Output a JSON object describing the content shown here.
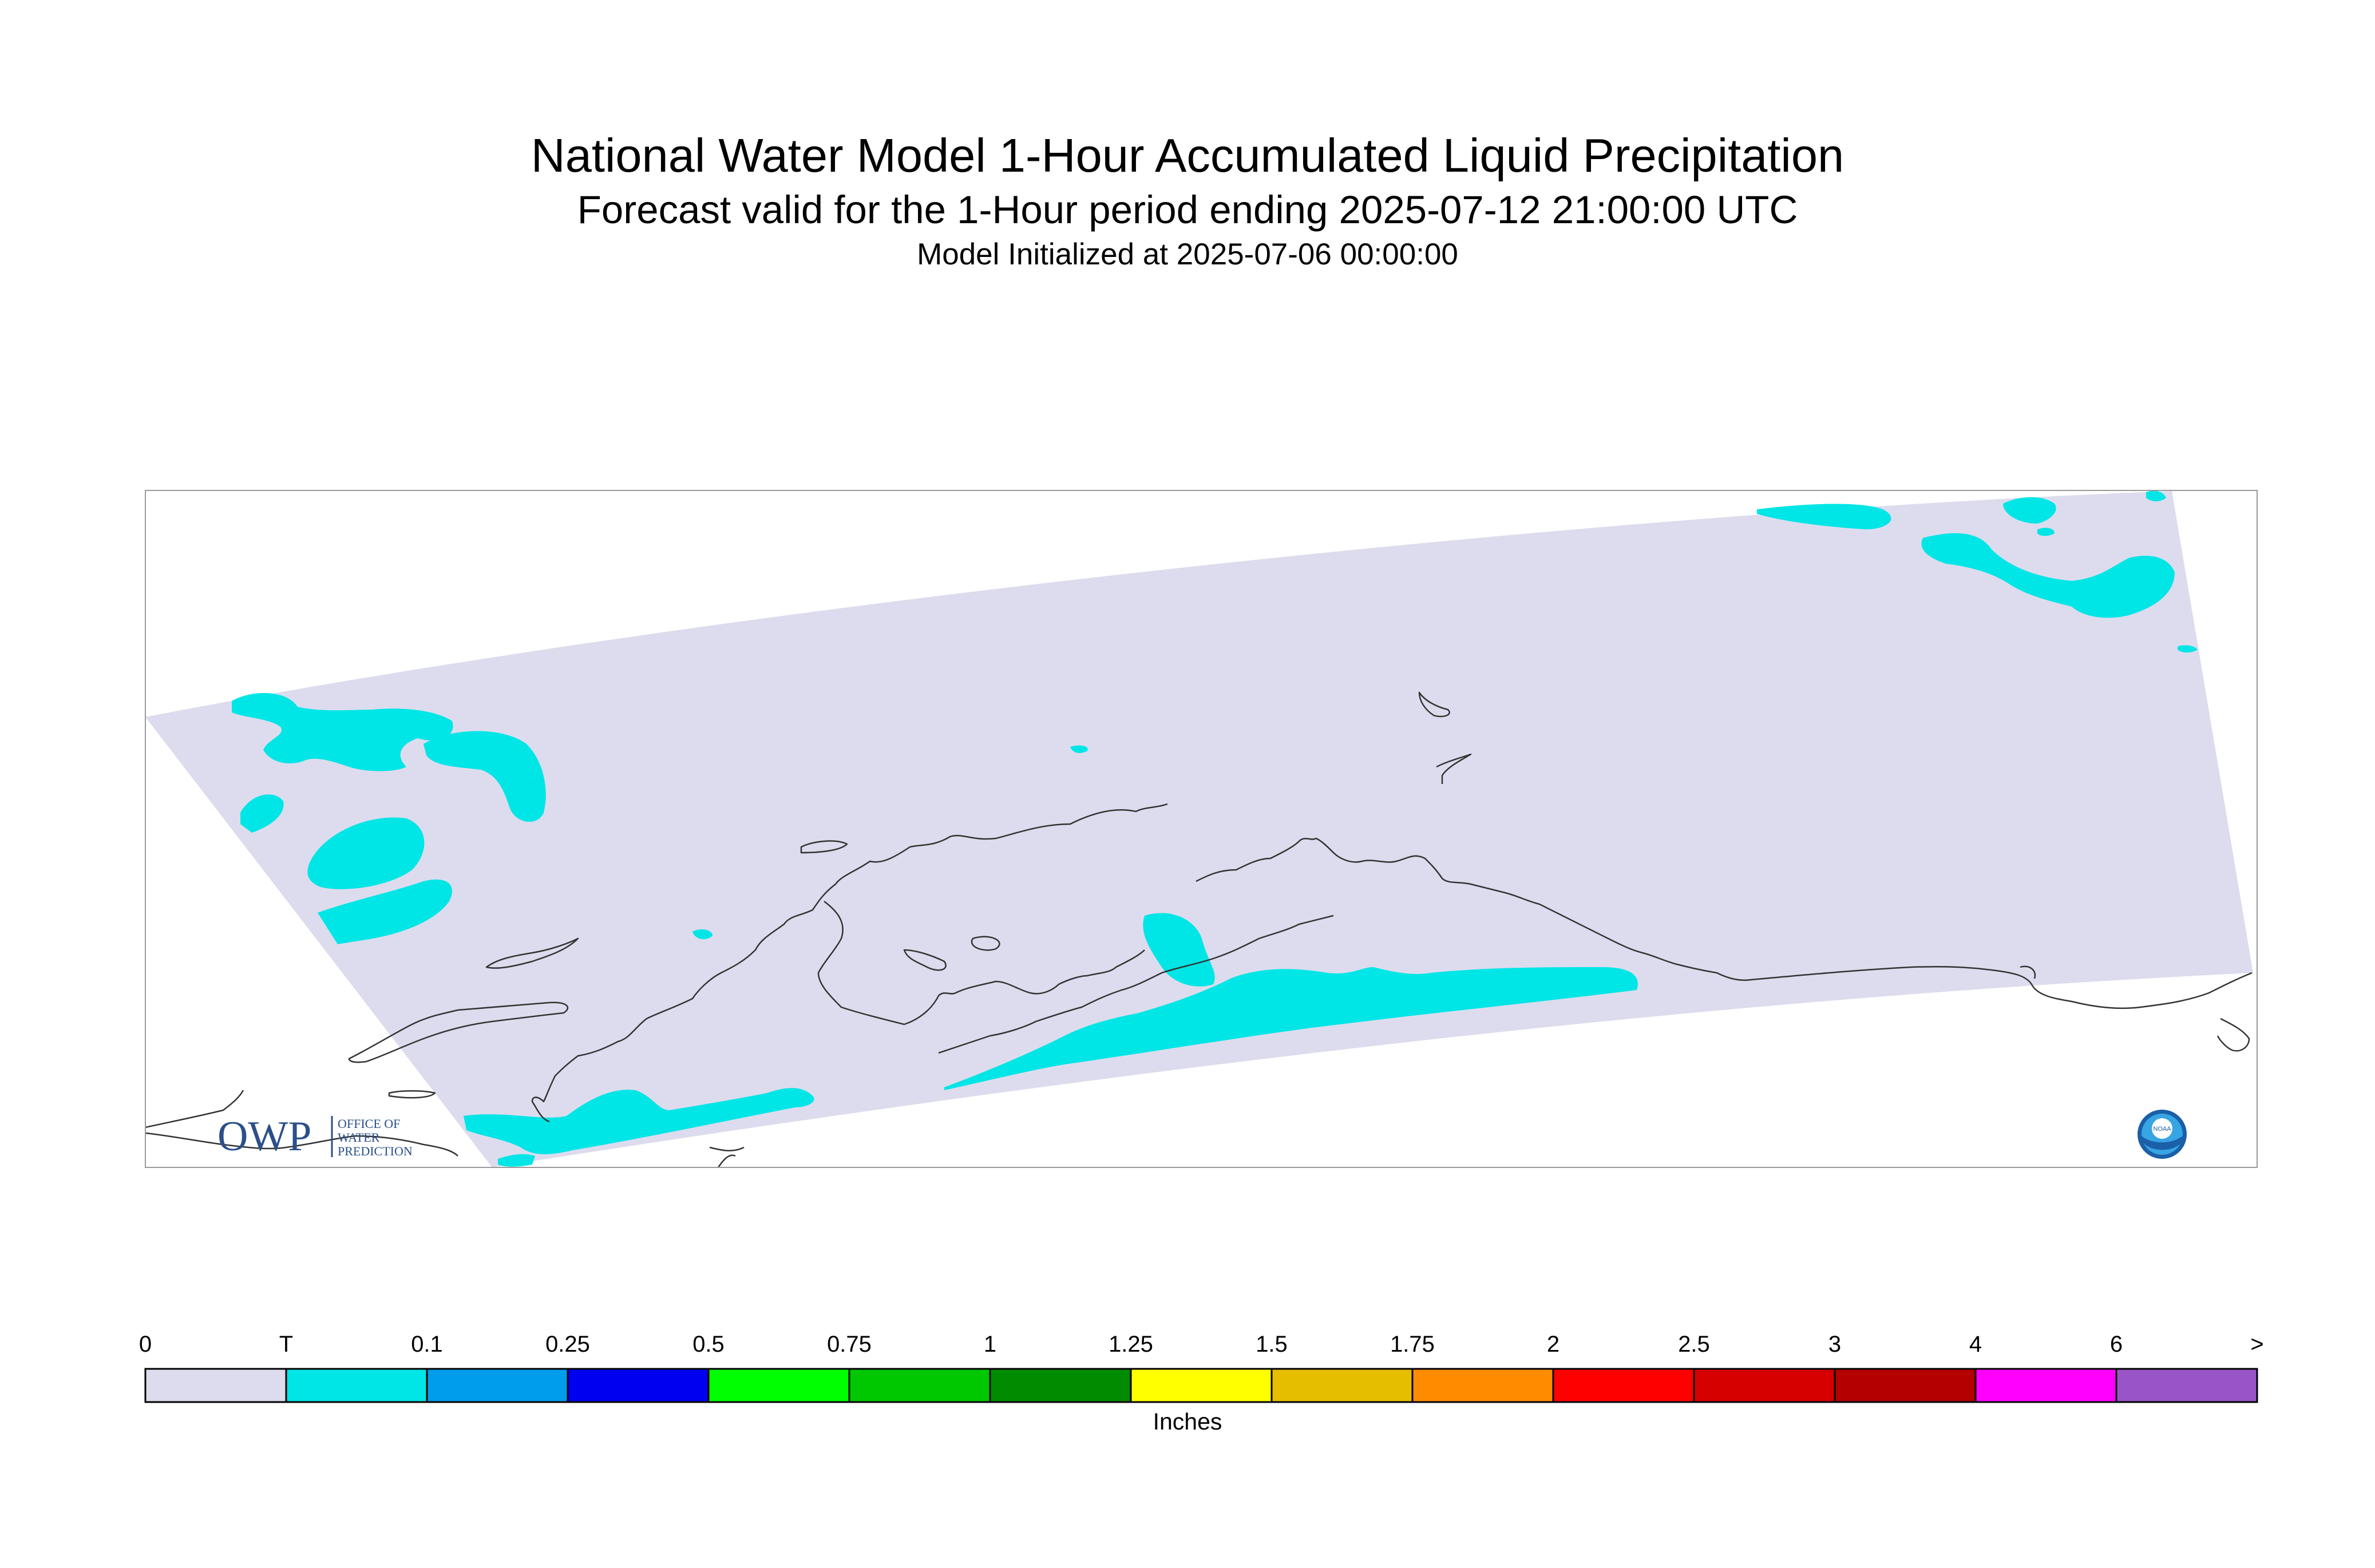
{
  "header": {
    "title": "National Water Model 1-Hour Accumulated Liquid Precipitation",
    "subtitle": "Forecast valid for the 1-Hour period ending 2025-07-12 21:00:00 UTC",
    "init": "Model Initialized at 2025-07-06 00:00:00"
  },
  "logos": {
    "owp_letters": "OWP",
    "owp_text": [
      "OFFICE OF",
      "WATER",
      "PREDICTION"
    ],
    "noaa_text": "NOAA"
  },
  "colors": {
    "domain": "#dcdcee",
    "trace": "#00e5e5",
    "coast": "#333333",
    "frame": "#999999"
  },
  "legend": {
    "units": "Inches",
    "labels": [
      "0",
      "T",
      "0.1",
      "0.25",
      "0.5",
      "0.75",
      "1",
      "1.25",
      "1.5",
      "1.75",
      "2",
      "2.5",
      "3",
      "4",
      "6",
      ">"
    ],
    "bins": [
      {
        "color": "#dcdcee"
      },
      {
        "color": "#00e5e5"
      },
      {
        "color": "#009ded"
      },
      {
        "color": "#0000f0"
      },
      {
        "color": "#00ff00"
      },
      {
        "color": "#00c800"
      },
      {
        "color": "#008c00"
      },
      {
        "color": "#ffff00"
      },
      {
        "color": "#e6be00"
      },
      {
        "color": "#ff8c00"
      },
      {
        "color": "#ff0000"
      },
      {
        "color": "#d70000"
      },
      {
        "color": "#b40000"
      },
      {
        "color": "#ff00ff"
      },
      {
        "color": "#9955c8"
      }
    ]
  }
}
